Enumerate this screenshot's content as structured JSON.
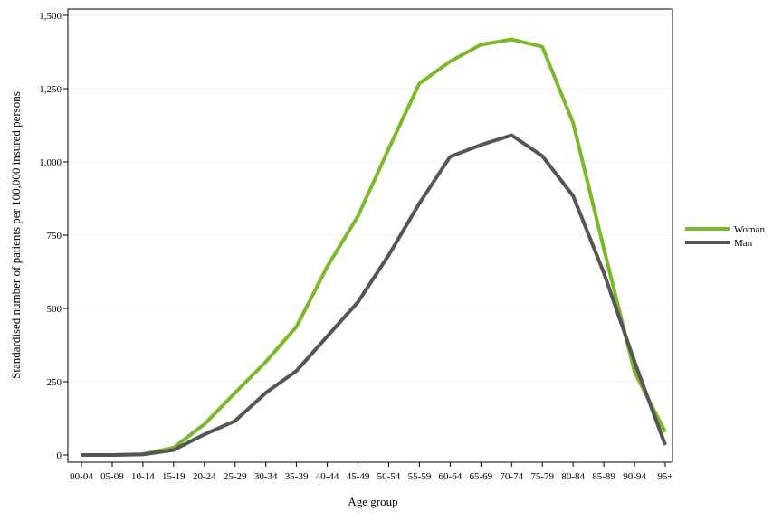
{
  "chart_data": {
    "type": "line",
    "xlabel": "Age group",
    "ylabel": "Standardised number of patients per 100,000 insured persons",
    "ylim": [
      0,
      1500
    ],
    "yticks": [
      0,
      250,
      500,
      750,
      1000,
      1250,
      1500
    ],
    "ytick_labels": [
      "0",
      "250",
      "500",
      "750",
      "1,000",
      "1,250",
      "1,500"
    ],
    "grid": "horizontal",
    "legend_position": "right",
    "categories": [
      "00-04",
      "05-09",
      "10-14",
      "15-19",
      "20-24",
      "25-29",
      "30-34",
      "35-39",
      "40-44",
      "45-49",
      "50-54",
      "55-59",
      "60-64",
      "65-69",
      "70-74",
      "75-79",
      "80-84",
      "85-89",
      "90-94",
      "95+"
    ],
    "series": [
      {
        "name": "Woman",
        "color": "#7ab929",
        "values": [
          0,
          0,
          3,
          25,
          105,
          212,
          318,
          438,
          643,
          815,
          1045,
          1268,
          1343,
          1400,
          1418,
          1393,
          1133,
          705,
          283,
          78
        ]
      },
      {
        "name": "Man",
        "color": "#555555",
        "values": [
          0,
          0,
          2,
          17,
          70,
          116,
          212,
          287,
          405,
          522,
          682,
          859,
          1018,
          1058,
          1091,
          1020,
          884,
          622,
          318,
          34
        ]
      }
    ]
  }
}
